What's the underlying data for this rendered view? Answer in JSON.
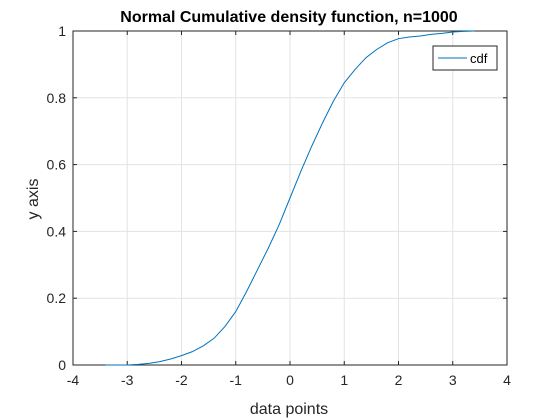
{
  "chart_data": {
    "type": "line",
    "title": "Normal Cumulative density function, n=1000",
    "xlabel": "data points",
    "ylabel": "y axis",
    "xlim": [
      -4,
      4
    ],
    "ylim": [
      0,
      1
    ],
    "xticks": [
      "-4",
      "-3",
      "-2",
      "-1",
      "0",
      "1",
      "2",
      "3",
      "4"
    ],
    "yticks": [
      "0",
      "0.2",
      "0.4",
      "0.6",
      "0.8",
      "1"
    ],
    "grid": true,
    "legend_position": "top-right",
    "line_color": "#0072bd",
    "series": [
      {
        "name": "cdf",
        "x": [
          -3.4,
          -3.0,
          -2.8,
          -2.6,
          -2.4,
          -2.2,
          -2.0,
          -1.8,
          -1.6,
          -1.4,
          -1.2,
          -1.0,
          -0.8,
          -0.6,
          -0.4,
          -0.2,
          0.0,
          0.2,
          0.4,
          0.6,
          0.8,
          1.0,
          1.2,
          1.4,
          1.6,
          1.8,
          2.0,
          2.2,
          2.4,
          2.6,
          2.8,
          3.0,
          3.2,
          3.4
        ],
        "y": [
          0.0,
          0.0,
          0.002,
          0.005,
          0.01,
          0.018,
          0.028,
          0.04,
          0.057,
          0.08,
          0.115,
          0.16,
          0.22,
          0.285,
          0.35,
          0.42,
          0.5,
          0.58,
          0.655,
          0.725,
          0.79,
          0.845,
          0.885,
          0.92,
          0.945,
          0.965,
          0.977,
          0.982,
          0.985,
          0.99,
          0.993,
          0.997,
          0.999,
          1.0
        ]
      }
    ]
  }
}
